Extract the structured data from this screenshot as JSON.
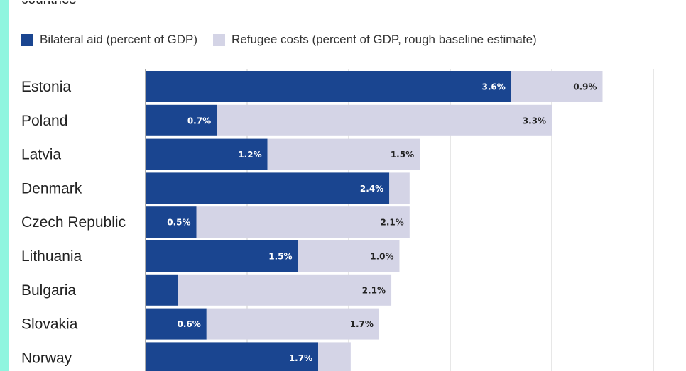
{
  "subtitle_fragment": "countries",
  "legend": [
    {
      "label": "Bilateral aid (percent of GDP)",
      "color": "#1a4590"
    },
    {
      "label": "Refugee costs (percent of GDP, rough baseline estimate)",
      "color": "#d4d4e6"
    }
  ],
  "colors": {
    "aid": "#1a4590",
    "refugee": "#d4d4e6",
    "aid_text": "#ffffff",
    "refugee_text": "#222222",
    "grid": "#cfcfcf",
    "left_strip": "#8ff5df"
  },
  "chart_data": {
    "type": "bar",
    "orientation": "horizontal",
    "stacked": true,
    "categories": [
      "Estonia",
      "Poland",
      "Latvia",
      "Denmark",
      "Czech Republic",
      "Lithuania",
      "Bulgaria",
      "Slovakia",
      "Norway"
    ],
    "series": [
      {
        "name": "Bilateral aid (percent of GDP)",
        "values": [
          3.6,
          0.7,
          1.2,
          2.4,
          0.5,
          1.5,
          0.32,
          0.6,
          1.7
        ],
        "labels": [
          "3.6%",
          "0.7%",
          "1.2%",
          "2.4%",
          "0.5%",
          "1.5%",
          "",
          "0.6%",
          "1.7%"
        ]
      },
      {
        "name": "Refugee costs (percent of GDP, rough baseline estimate)",
        "values": [
          0.9,
          3.3,
          1.5,
          0.2,
          2.1,
          1.0,
          2.1,
          1.7,
          0.32
        ],
        "labels": [
          "0.9%",
          "3.3%",
          "1.5%",
          "",
          "2.1%",
          "1.0%",
          "2.1%",
          "1.7%",
          ""
        ]
      }
    ],
    "xlim": [
      0,
      5
    ],
    "gridlines_at": [
      1,
      2,
      3,
      4,
      5
    ],
    "grid": true
  }
}
